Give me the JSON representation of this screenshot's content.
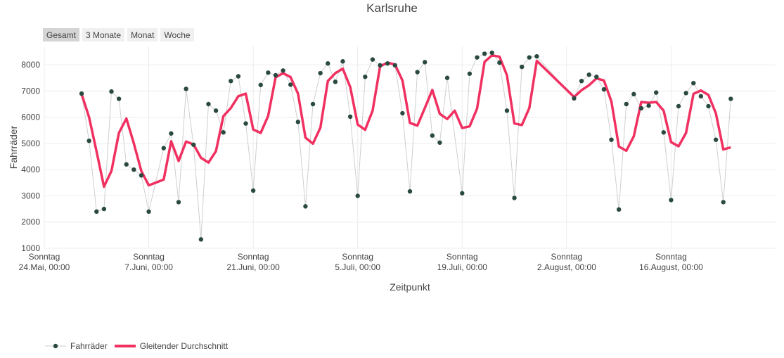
{
  "title": "Karlsruhe",
  "range_buttons": [
    {
      "label": "Gesamt",
      "active": true
    },
    {
      "label": "3 Monate",
      "active": false
    },
    {
      "label": "Monat",
      "active": false
    },
    {
      "label": "Woche",
      "active": false
    }
  ],
  "colors": {
    "points": "#2a4a40",
    "points_line": "#cfcfcf",
    "avg_line": "#f03060",
    "grid": "#ececec"
  },
  "chart_data": {
    "type": "line",
    "xlabel": "Zeitpunkt",
    "ylabel": "Fahrräder",
    "xlim": [
      "2020-05-24",
      "2020-08-30"
    ],
    "ylim": [
      1000,
      8700
    ],
    "y_ticks": [
      1000,
      2000,
      3000,
      4000,
      5000,
      6000,
      7000,
      8000
    ],
    "x_ticks": [
      {
        "date": "2020-05-24",
        "line1": "Sonntag",
        "line2": "24.Mai, 00:00"
      },
      {
        "date": "2020-06-07",
        "line1": "Sonntag",
        "line2": "7.Juni, 00:00"
      },
      {
        "date": "2020-06-21",
        "line1": "Sonntag",
        "line2": "21.Juni, 00:00"
      },
      {
        "date": "2020-07-05",
        "line1": "Sonntag",
        "line2": "5.Juli, 00:00"
      },
      {
        "date": "2020-07-19",
        "line1": "Sonntag",
        "line2": "19.Juli, 00:00"
      },
      {
        "date": "2020-08-02",
        "line1": "Sonntag",
        "line2": "2.August, 00:00"
      },
      {
        "date": "2020-08-16",
        "line1": "Sonntag",
        "line2": "16.August, 00:00"
      }
    ],
    "series": [
      {
        "name": "Fahrräder",
        "style": "markers+lines",
        "points": [
          {
            "x": "2020-05-29",
            "y": 6900
          },
          {
            "x": "2020-05-30",
            "y": 5100
          },
          {
            "x": "2020-05-31",
            "y": 2400
          },
          {
            "x": "2020-06-01",
            "y": 2500
          },
          {
            "x": "2020-06-02",
            "y": 6980
          },
          {
            "x": "2020-06-03",
            "y": 6700
          },
          {
            "x": "2020-06-04",
            "y": 4200
          },
          {
            "x": "2020-06-05",
            "y": 4000
          },
          {
            "x": "2020-06-06",
            "y": 3780
          },
          {
            "x": "2020-06-07",
            "y": 2400
          },
          {
            "x": "2020-06-09",
            "y": 4820
          },
          {
            "x": "2020-06-10",
            "y": 5380
          },
          {
            "x": "2020-06-11",
            "y": 2760
          },
          {
            "x": "2020-06-12",
            "y": 7080
          },
          {
            "x": "2020-06-13",
            "y": 4950
          },
          {
            "x": "2020-06-14",
            "y": 1340
          },
          {
            "x": "2020-06-15",
            "y": 6500
          },
          {
            "x": "2020-06-16",
            "y": 6250
          },
          {
            "x": "2020-06-17",
            "y": 5420
          },
          {
            "x": "2020-06-18",
            "y": 7380
          },
          {
            "x": "2020-06-19",
            "y": 7560
          },
          {
            "x": "2020-06-20",
            "y": 5760
          },
          {
            "x": "2020-06-21",
            "y": 3200
          },
          {
            "x": "2020-06-22",
            "y": 7230
          },
          {
            "x": "2020-06-23",
            "y": 7700
          },
          {
            "x": "2020-06-24",
            "y": 7600
          },
          {
            "x": "2020-06-25",
            "y": 7780
          },
          {
            "x": "2020-06-26",
            "y": 7240
          },
          {
            "x": "2020-06-27",
            "y": 5820
          },
          {
            "x": "2020-06-28",
            "y": 2600
          },
          {
            "x": "2020-06-29",
            "y": 6500
          },
          {
            "x": "2020-06-30",
            "y": 7680
          },
          {
            "x": "2020-07-01",
            "y": 8050
          },
          {
            "x": "2020-07-02",
            "y": 7350
          },
          {
            "x": "2020-07-03",
            "y": 8130
          },
          {
            "x": "2020-07-04",
            "y": 6020
          },
          {
            "x": "2020-07-05",
            "y": 3000
          },
          {
            "x": "2020-07-06",
            "y": 7540
          },
          {
            "x": "2020-07-07",
            "y": 8200
          },
          {
            "x": "2020-07-08",
            "y": 7980
          },
          {
            "x": "2020-07-09",
            "y": 8050
          },
          {
            "x": "2020-07-10",
            "y": 7980
          },
          {
            "x": "2020-07-11",
            "y": 6150
          },
          {
            "x": "2020-07-12",
            "y": 3170
          },
          {
            "x": "2020-07-13",
            "y": 7720
          },
          {
            "x": "2020-07-14",
            "y": 8100
          },
          {
            "x": "2020-07-15",
            "y": 5300
          },
          {
            "x": "2020-07-16",
            "y": 5030
          },
          {
            "x": "2020-07-17",
            "y": 7500
          },
          {
            "x": "2020-07-19",
            "y": 3100
          },
          {
            "x": "2020-07-20",
            "y": 7660
          },
          {
            "x": "2020-07-21",
            "y": 8280
          },
          {
            "x": "2020-07-22",
            "y": 8420
          },
          {
            "x": "2020-07-23",
            "y": 8460
          },
          {
            "x": "2020-07-24",
            "y": 8080
          },
          {
            "x": "2020-07-25",
            "y": 6250
          },
          {
            "x": "2020-07-26",
            "y": 2920
          },
          {
            "x": "2020-07-27",
            "y": 7920
          },
          {
            "x": "2020-07-28",
            "y": 8280
          },
          {
            "x": "2020-07-29",
            "y": 8320
          },
          {
            "x": "2020-08-03",
            "y": 6720
          },
          {
            "x": "2020-08-04",
            "y": 7380
          },
          {
            "x": "2020-08-05",
            "y": 7620
          },
          {
            "x": "2020-08-06",
            "y": 7540
          },
          {
            "x": "2020-08-07",
            "y": 7060
          },
          {
            "x": "2020-08-08",
            "y": 5140
          },
          {
            "x": "2020-08-09",
            "y": 2480
          },
          {
            "x": "2020-08-10",
            "y": 6500
          },
          {
            "x": "2020-08-11",
            "y": 6880
          },
          {
            "x": "2020-08-12",
            "y": 6340
          },
          {
            "x": "2020-08-13",
            "y": 6440
          },
          {
            "x": "2020-08-14",
            "y": 6940
          },
          {
            "x": "2020-08-15",
            "y": 5420
          },
          {
            "x": "2020-08-16",
            "y": 2840
          },
          {
            "x": "2020-08-17",
            "y": 6420
          },
          {
            "x": "2020-08-18",
            "y": 6920
          },
          {
            "x": "2020-08-19",
            "y": 7300
          },
          {
            "x": "2020-08-20",
            "y": 6800
          },
          {
            "x": "2020-08-21",
            "y": 6420
          },
          {
            "x": "2020-08-22",
            "y": 5140
          },
          {
            "x": "2020-08-23",
            "y": 2760
          },
          {
            "x": "2020-08-24",
            "y": 6700
          }
        ]
      },
      {
        "name": "Gleitender Durchschnitt",
        "style": "lines",
        "points": [
          {
            "x": "2020-05-29",
            "y": 6880
          },
          {
            "x": "2020-05-30",
            "y": 6000
          },
          {
            "x": "2020-05-31",
            "y": 4700
          },
          {
            "x": "2020-06-01",
            "y": 3350
          },
          {
            "x": "2020-06-02",
            "y": 3950
          },
          {
            "x": "2020-06-03",
            "y": 5400
          },
          {
            "x": "2020-06-04",
            "y": 5950
          },
          {
            "x": "2020-06-05",
            "y": 5000
          },
          {
            "x": "2020-06-06",
            "y": 3950
          },
          {
            "x": "2020-06-07",
            "y": 3400
          },
          {
            "x": "2020-06-09",
            "y": 3620
          },
          {
            "x": "2020-06-10",
            "y": 5080
          },
          {
            "x": "2020-06-11",
            "y": 4330
          },
          {
            "x": "2020-06-12",
            "y": 5070
          },
          {
            "x": "2020-06-13",
            "y": 4960
          },
          {
            "x": "2020-06-14",
            "y": 4450
          },
          {
            "x": "2020-06-15",
            "y": 4270
          },
          {
            "x": "2020-06-16",
            "y": 4700
          },
          {
            "x": "2020-06-17",
            "y": 6040
          },
          {
            "x": "2020-06-18",
            "y": 6350
          },
          {
            "x": "2020-06-19",
            "y": 6800
          },
          {
            "x": "2020-06-20",
            "y": 6900
          },
          {
            "x": "2020-06-21",
            "y": 5530
          },
          {
            "x": "2020-06-22",
            "y": 5400
          },
          {
            "x": "2020-06-23",
            "y": 6050
          },
          {
            "x": "2020-06-24",
            "y": 7520
          },
          {
            "x": "2020-06-25",
            "y": 7680
          },
          {
            "x": "2020-06-26",
            "y": 7530
          },
          {
            "x": "2020-06-27",
            "y": 6900
          },
          {
            "x": "2020-06-28",
            "y": 5220
          },
          {
            "x": "2020-06-29",
            "y": 4990
          },
          {
            "x": "2020-06-30",
            "y": 5600
          },
          {
            "x": "2020-07-01",
            "y": 7380
          },
          {
            "x": "2020-07-02",
            "y": 7680
          },
          {
            "x": "2020-07-03",
            "y": 7850
          },
          {
            "x": "2020-07-04",
            "y": 7150
          },
          {
            "x": "2020-07-05",
            "y": 5720
          },
          {
            "x": "2020-07-06",
            "y": 5520
          },
          {
            "x": "2020-07-07",
            "y": 6250
          },
          {
            "x": "2020-07-08",
            "y": 7940
          },
          {
            "x": "2020-07-09",
            "y": 8080
          },
          {
            "x": "2020-07-10",
            "y": 8010
          },
          {
            "x": "2020-07-11",
            "y": 7400
          },
          {
            "x": "2020-07-12",
            "y": 5780
          },
          {
            "x": "2020-07-13",
            "y": 5680
          },
          {
            "x": "2020-07-14",
            "y": 6350
          },
          {
            "x": "2020-07-15",
            "y": 7040
          },
          {
            "x": "2020-07-16",
            "y": 6130
          },
          {
            "x": "2020-07-17",
            "y": 5930
          },
          {
            "x": "2020-07-18",
            "y": 6250
          },
          {
            "x": "2020-07-19",
            "y": 5590
          },
          {
            "x": "2020-07-20",
            "y": 5650
          },
          {
            "x": "2020-07-21",
            "y": 6330
          },
          {
            "x": "2020-07-22",
            "y": 8110
          },
          {
            "x": "2020-07-23",
            "y": 8360
          },
          {
            "x": "2020-07-24",
            "y": 8310
          },
          {
            "x": "2020-07-25",
            "y": 7600
          },
          {
            "x": "2020-07-26",
            "y": 5760
          },
          {
            "x": "2020-07-27",
            "y": 5700
          },
          {
            "x": "2020-07-28",
            "y": 6350
          },
          {
            "x": "2020-07-29",
            "y": 8150
          },
          {
            "x": "2020-08-03",
            "y": 6770
          },
          {
            "x": "2020-08-04",
            "y": 7030
          },
          {
            "x": "2020-08-05",
            "y": 7220
          },
          {
            "x": "2020-08-06",
            "y": 7480
          },
          {
            "x": "2020-08-07",
            "y": 7400
          },
          {
            "x": "2020-08-08",
            "y": 6600
          },
          {
            "x": "2020-08-09",
            "y": 4880
          },
          {
            "x": "2020-08-10",
            "y": 4720
          },
          {
            "x": "2020-08-11",
            "y": 5270
          },
          {
            "x": "2020-08-12",
            "y": 6580
          },
          {
            "x": "2020-08-13",
            "y": 6550
          },
          {
            "x": "2020-08-14",
            "y": 6580
          },
          {
            "x": "2020-08-15",
            "y": 6250
          },
          {
            "x": "2020-08-16",
            "y": 5050
          },
          {
            "x": "2020-08-17",
            "y": 4890
          },
          {
            "x": "2020-08-18",
            "y": 5400
          },
          {
            "x": "2020-08-19",
            "y": 6890
          },
          {
            "x": "2020-08-20",
            "y": 7020
          },
          {
            "x": "2020-08-21",
            "y": 6850
          },
          {
            "x": "2020-08-22",
            "y": 6150
          },
          {
            "x": "2020-08-23",
            "y": 4770
          },
          {
            "x": "2020-08-24",
            "y": 4850
          }
        ]
      }
    ],
    "legend_position": "bottom-left"
  }
}
